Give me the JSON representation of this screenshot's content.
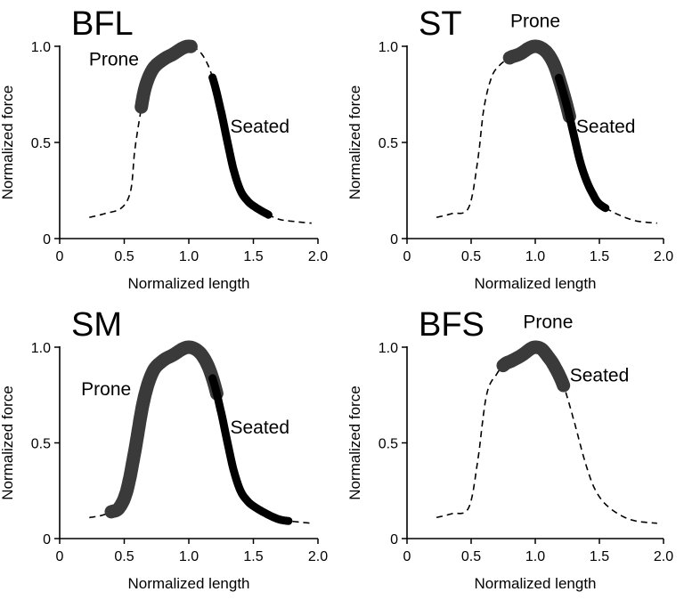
{
  "chart_data": [
    {
      "type": "line",
      "title": "BFL",
      "xlabel": "Normalized length",
      "ylabel": "Normalized force",
      "xlim": [
        0,
        2.0
      ],
      "ylim": [
        0,
        1.0
      ],
      "xticks": [
        "0",
        "0.5",
        "1.0",
        "1.5",
        "2.0"
      ],
      "yticks": [
        "0",
        "0.5",
        "1.0"
      ],
      "grid": false,
      "curve": {
        "x": [
          0.23,
          0.35,
          0.48,
          0.55,
          0.58,
          0.62,
          0.66,
          0.72,
          0.8,
          0.88,
          0.95,
          1.0,
          1.05,
          1.1,
          1.15,
          1.2,
          1.25,
          1.3,
          1.35,
          1.4,
          1.45,
          1.5,
          1.6,
          1.7,
          1.8,
          1.95
        ],
        "y": [
          0.11,
          0.13,
          0.16,
          0.25,
          0.45,
          0.63,
          0.78,
          0.88,
          0.93,
          0.96,
          0.99,
          1.0,
          0.99,
          0.96,
          0.9,
          0.8,
          0.66,
          0.5,
          0.35,
          0.25,
          0.2,
          0.17,
          0.13,
          0.1,
          0.09,
          0.08
        ]
      },
      "series": [
        {
          "name": "Prone",
          "x_range": [
            0.63,
            1.02
          ],
          "weight": "thick"
        },
        {
          "name": "Seated",
          "x_range": [
            1.18,
            1.62
          ],
          "weight": "medium"
        }
      ],
      "annotations": [
        {
          "text": "Prone",
          "x": 0.42,
          "y": 0.9
        },
        {
          "text": "Seated",
          "x": 1.55,
          "y": 0.55
        }
      ]
    },
    {
      "type": "line",
      "title": "ST",
      "xlabel": "Normalized length",
      "ylabel": "Normalized force",
      "xlim": [
        0,
        2.0
      ],
      "ylim": [
        0,
        1.0
      ],
      "xticks": [
        "0",
        "0.5",
        "1.0",
        "1.5",
        "2.0"
      ],
      "yticks": [
        "0",
        "0.5",
        "1.0"
      ],
      "grid": false,
      "curve": {
        "x": [
          0.23,
          0.35,
          0.48,
          0.55,
          0.6,
          0.66,
          0.72,
          0.8,
          0.88,
          0.95,
          1.0,
          1.05,
          1.1,
          1.15,
          1.2,
          1.25,
          1.3,
          1.35,
          1.4,
          1.45,
          1.5,
          1.6,
          1.7,
          1.8,
          1.95
        ],
        "y": [
          0.11,
          0.13,
          0.16,
          0.4,
          0.68,
          0.84,
          0.9,
          0.94,
          0.96,
          0.99,
          1.0,
          0.99,
          0.96,
          0.9,
          0.8,
          0.68,
          0.54,
          0.4,
          0.3,
          0.23,
          0.18,
          0.14,
          0.11,
          0.09,
          0.08
        ]
      },
      "series": [
        {
          "name": "Prone",
          "x_range": [
            0.8,
            1.27
          ],
          "weight": "thick"
        },
        {
          "name": "Seated",
          "x_range": [
            1.18,
            1.55
          ],
          "weight": "medium"
        }
      ],
      "annotations": [
        {
          "text": "Prone",
          "x": 1.0,
          "y": 1.1
        },
        {
          "text": "Seated",
          "x": 1.55,
          "y": 0.55
        }
      ]
    },
    {
      "type": "line",
      "title": "SM",
      "xlabel": "Normalized length",
      "ylabel": "Normalized force",
      "xlim": [
        0,
        2.0
      ],
      "ylim": [
        0,
        1.0
      ],
      "xticks": [
        "0",
        "0.5",
        "1.0",
        "1.5",
        "2.0"
      ],
      "yticks": [
        "0",
        "0.5",
        "1.0"
      ],
      "grid": false,
      "curve": {
        "x": [
          0.23,
          0.32,
          0.4,
          0.46,
          0.52,
          0.58,
          0.65,
          0.72,
          0.8,
          0.88,
          0.95,
          1.0,
          1.05,
          1.1,
          1.15,
          1.2,
          1.25,
          1.3,
          1.35,
          1.4,
          1.45,
          1.5,
          1.6,
          1.7,
          1.8,
          1.95
        ],
        "y": [
          0.11,
          0.12,
          0.14,
          0.16,
          0.25,
          0.45,
          0.72,
          0.87,
          0.93,
          0.96,
          0.99,
          1.0,
          0.99,
          0.96,
          0.9,
          0.8,
          0.66,
          0.5,
          0.35,
          0.25,
          0.2,
          0.17,
          0.13,
          0.1,
          0.09,
          0.08
        ]
      },
      "series": [
        {
          "name": "Prone",
          "x_range": [
            0.4,
            1.22
          ],
          "weight": "thick"
        },
        {
          "name": "Seated",
          "x_range": [
            1.18,
            1.78
          ],
          "weight": "medium"
        }
      ],
      "annotations": [
        {
          "text": "Prone",
          "x": 0.36,
          "y": 0.75
        },
        {
          "text": "Seated",
          "x": 1.55,
          "y": 0.55
        }
      ]
    },
    {
      "type": "line",
      "title": "BFS",
      "xlabel": "Normalized length",
      "ylabel": "Normalized force",
      "xlim": [
        0,
        2.0
      ],
      "ylim": [
        0,
        1.0
      ],
      "xticks": [
        "0",
        "0.5",
        "1.0",
        "1.5",
        "2.0"
      ],
      "yticks": [
        "0",
        "0.5",
        "1.0"
      ],
      "grid": false,
      "curve": {
        "x": [
          0.23,
          0.35,
          0.48,
          0.55,
          0.62,
          0.7,
          0.76,
          0.82,
          0.9,
          0.96,
          1.0,
          1.05,
          1.1,
          1.15,
          1.22,
          1.3,
          1.38,
          1.45,
          1.52,
          1.6,
          1.7,
          1.8,
          1.95
        ],
        "y": [
          0.11,
          0.13,
          0.16,
          0.4,
          0.75,
          0.86,
          0.91,
          0.93,
          0.96,
          0.99,
          1.0,
          0.99,
          0.95,
          0.9,
          0.8,
          0.62,
          0.42,
          0.28,
          0.2,
          0.15,
          0.11,
          0.09,
          0.08
        ]
      },
      "series": [
        {
          "name": "Prone",
          "x_range": [
            0.75,
            1.22
          ],
          "weight": "thick"
        }
      ],
      "annotations": [
        {
          "text": "Prone",
          "x": 1.1,
          "y": 1.1
        },
        {
          "text": "Seated",
          "x": 1.5,
          "y": 0.82
        }
      ]
    }
  ]
}
